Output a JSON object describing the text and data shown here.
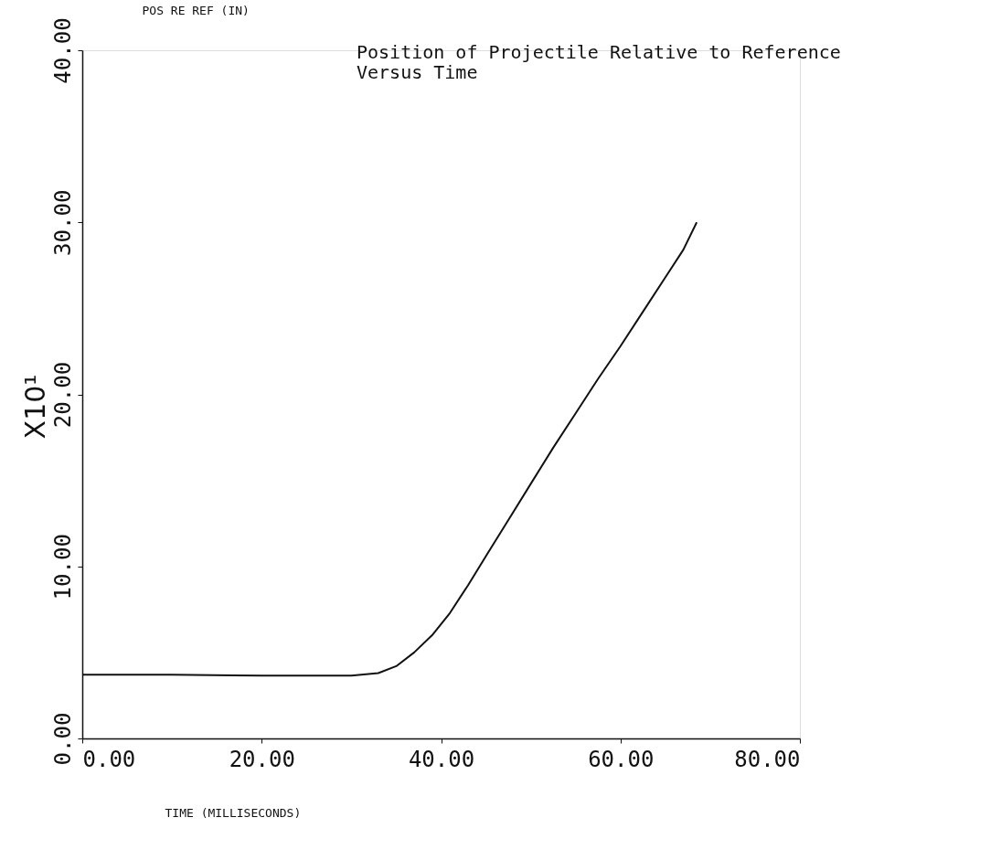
{
  "chart_data": {
    "type": "line",
    "title": "Position of Projectile Relative to Reference\nVersus Time",
    "xlabel": "TIME (MILLISECONDS)",
    "ylabel": "POS RE REF (IN)",
    "annotations": [
      "X10¹"
    ],
    "x": [
      0,
      10,
      20,
      30,
      33,
      35,
      37,
      39,
      41,
      43,
      45,
      47.5,
      50,
      52.5,
      55,
      57.5,
      60,
      62.5,
      65,
      67,
      68.5
    ],
    "series": [
      {
        "color": "#111111",
        "values": [
          3.7,
          3.7,
          3.65,
          3.65,
          3.8,
          4.2,
          5.0,
          6.0,
          7.3,
          8.9,
          10.6,
          12.7,
          14.8,
          16.9,
          18.9,
          20.9,
          22.8,
          24.8,
          26.8,
          28.4,
          30.0
        ]
      }
    ],
    "xlim": [
      0,
      80
    ],
    "ylim": [
      0,
      40
    ],
    "xticks": [
      {
        "value": 0,
        "label": "0.00"
      },
      {
        "value": 20,
        "label": "20.00"
      },
      {
        "value": 40,
        "label": "40.00"
      },
      {
        "value": 60,
        "label": "60.00"
      },
      {
        "value": 80,
        "label": "80.00"
      }
    ],
    "yticks": [
      {
        "value": 0,
        "label": "0.00"
      },
      {
        "value": 10,
        "label": "10.00"
      },
      {
        "value": 20,
        "label": "20.00"
      },
      {
        "value": 30,
        "label": "30.00"
      },
      {
        "value": 40,
        "label": "40.00"
      }
    ],
    "grid": false,
    "marker": "none",
    "line_style": "solid"
  }
}
